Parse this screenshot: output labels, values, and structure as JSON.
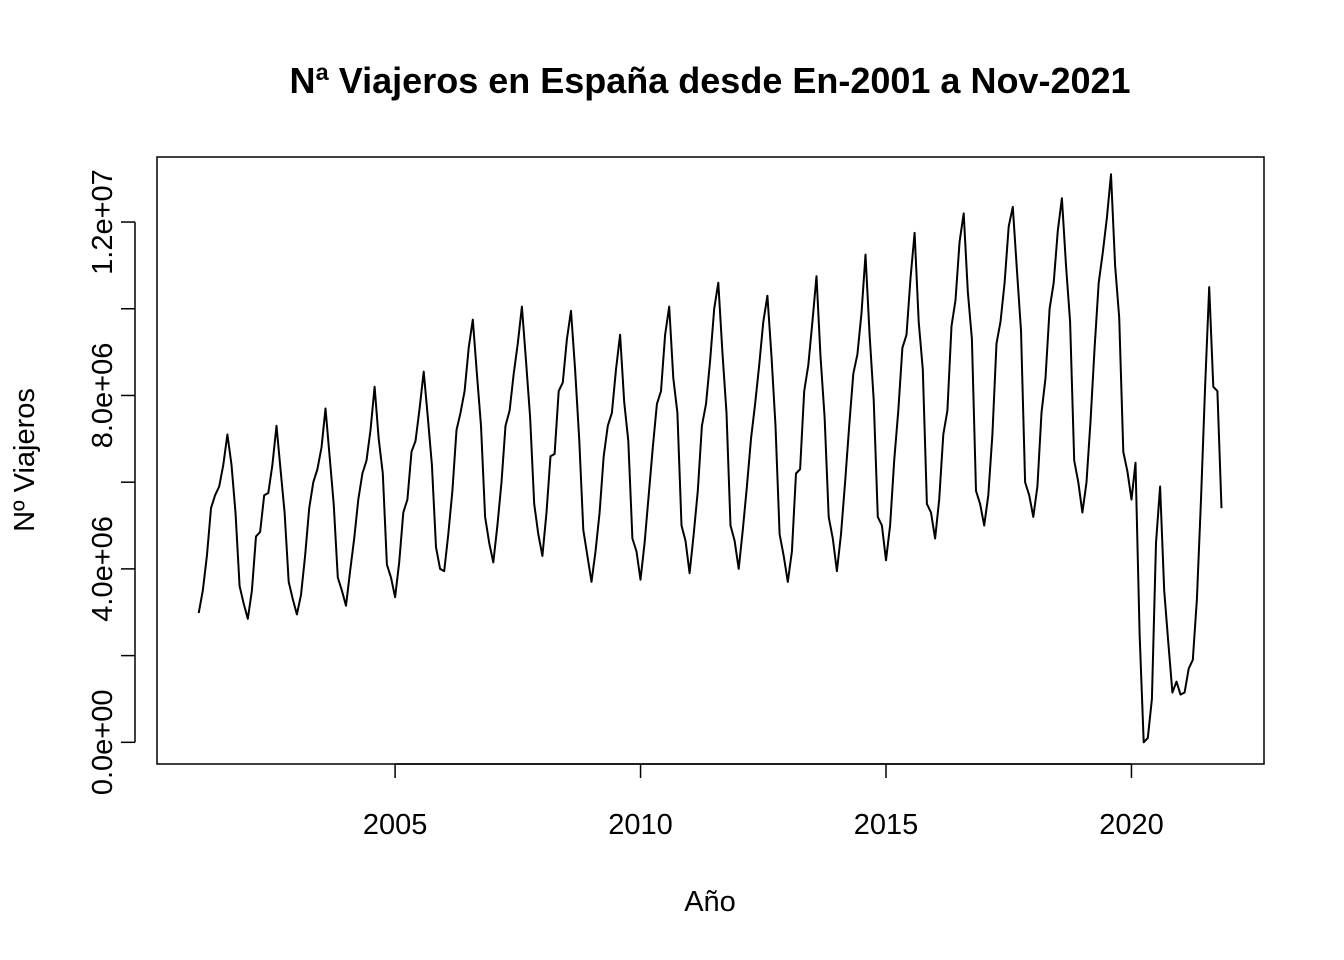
{
  "chart_data": {
    "type": "line",
    "title": "Nª Viajeros en España desde En-2001 a Nov-2021",
    "xlabel": "Año",
    "ylabel": "Nº Viajeros",
    "xlim": [
      2000.15,
      2022.7
    ],
    "ylim": [
      -500000,
      13500000
    ],
    "x_ticks": [
      2005,
      2010,
      2015,
      2020
    ],
    "x_tick_labels": [
      "2005",
      "2010",
      "2015",
      "2020"
    ],
    "y_ticks": [
      0,
      2000000,
      4000000,
      6000000,
      8000000,
      10000000,
      12000000
    ],
    "y_tick_labels": [
      "0.0e+00",
      "4.0e+06",
      "8.0e+06",
      "1.2e+07"
    ],
    "y_tick_label_values": [
      0,
      4000000,
      8000000,
      12000000
    ],
    "x_start": 2001.0,
    "x_step": 0.08333333,
    "color": "#000000",
    "grid": false,
    "legend": "none",
    "series": [
      {
        "values": [
          2980000,
          3500000,
          4300000,
          5400000,
          5700000,
          5900000,
          6400000,
          7100000,
          6400000,
          5300000,
          3600000,
          3200000,
          2850000,
          3500000,
          4750000,
          4850000,
          5700000,
          5750000,
          6400000,
          7300000,
          6300000,
          5300000,
          3700000,
          3300000,
          2950000,
          3400000,
          4300000,
          5400000,
          6000000,
          6300000,
          6800000,
          7700000,
          6600000,
          5500000,
          3800000,
          3500000,
          3150000,
          3950000,
          4700000,
          5600000,
          6200000,
          6500000,
          7200000,
          8200000,
          7000000,
          6200000,
          4100000,
          3800000,
          3350000,
          4150000,
          5300000,
          5600000,
          6700000,
          6950000,
          7700000,
          8550000,
          7500000,
          6400000,
          4500000,
          4000000,
          3950000,
          4800000,
          5800000,
          7200000,
          7600000,
          8100000,
          9100000,
          9750000,
          8500000,
          7300000,
          5200000,
          4600000,
          4150000,
          5000000,
          6000000,
          7300000,
          7650000,
          8500000,
          9200000,
          10050000,
          8800000,
          7500000,
          5500000,
          4800000,
          4300000,
          5300000,
          6600000,
          6650000,
          8100000,
          8300000,
          9300000,
          9950000,
          8600000,
          7000000,
          4900000,
          4300000,
          3700000,
          4400000,
          5300000,
          6600000,
          7300000,
          7600000,
          8600000,
          9400000,
          7850000,
          6950000,
          4700000,
          4400000,
          3750000,
          4600000,
          5700000,
          6800000,
          7800000,
          8100000,
          9400000,
          10050000,
          8400000,
          7600000,
          5000000,
          4650000,
          3900000,
          4800000,
          5800000,
          7300000,
          7800000,
          8800000,
          10000000,
          10600000,
          9000000,
          7600000,
          5000000,
          4650000,
          4000000,
          4900000,
          5900000,
          7000000,
          7800000,
          8700000,
          9700000,
          10300000,
          8900000,
          7300000,
          4800000,
          4300000,
          3700000,
          4400000,
          6200000,
          6300000,
          8100000,
          8700000,
          9700000,
          10750000,
          8900000,
          7500000,
          5200000,
          4700000,
          3950000,
          4800000,
          6000000,
          7300000,
          8500000,
          8950000,
          9900000,
          11250000,
          9400000,
          7900000,
          5200000,
          5000000,
          4200000,
          5000000,
          6500000,
          7650000,
          9100000,
          9400000,
          10700000,
          11750000,
          9700000,
          8600000,
          5500000,
          5300000,
          4700000,
          5600000,
          7100000,
          7650000,
          9600000,
          10200000,
          11550000,
          12200000,
          10400000,
          9300000,
          5800000,
          5500000,
          5000000,
          5700000,
          7100000,
          9200000,
          9700000,
          10600000,
          11900000,
          12350000,
          10900000,
          9500000,
          6000000,
          5700000,
          5200000,
          5900000,
          7600000,
          8400000,
          10000000,
          10600000,
          11800000,
          12550000,
          11000000,
          9700000,
          6500000,
          6000000,
          5300000,
          6000000,
          7400000,
          9100000,
          10600000,
          11300000,
          12100000,
          13100000,
          11000000,
          9800000,
          6700000,
          6250000,
          5600000,
          6450000,
          2500000,
          0,
          100000,
          1000000,
          4600000,
          5900000,
          3500000,
          2300000,
          1150000,
          1400000,
          1100000,
          1150000,
          1700000,
          1900000,
          3300000,
          5600000,
          8200000,
          10500000,
          8200000,
          8100000,
          5400000
        ]
      }
    ]
  }
}
